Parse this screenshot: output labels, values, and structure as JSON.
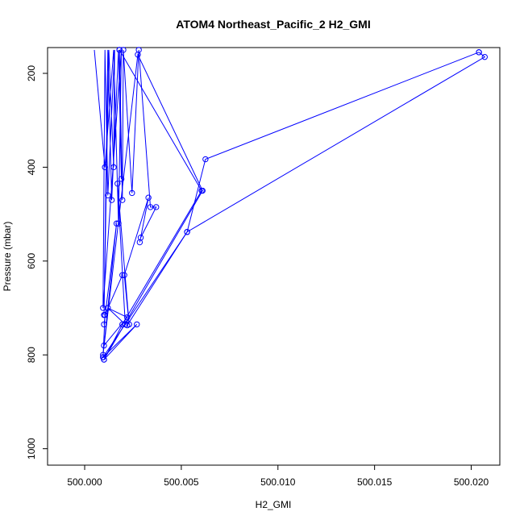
{
  "chart_data": {
    "type": "line",
    "title": "ATOM4 Northeast_Pacific_2 H2_GMI",
    "xlabel": "H2_GMI",
    "ylabel": "Pressure (mbar)",
    "xlim": [
      499.99808,
      500.02148
    ],
    "ylim": [
      1035,
      145
    ],
    "y_reversed": true,
    "x_ticks": [
      500.0,
      500.005,
      500.01,
      500.015,
      500.02
    ],
    "x_tick_labels": [
      "500.000",
      "500.005",
      "500.010",
      "500.015",
      "500.020"
    ],
    "y_ticks": [
      200,
      400,
      600,
      800,
      1000
    ],
    "y_tick_labels": [
      "200",
      "400",
      "600",
      "800",
      "1000"
    ],
    "grid": false,
    "legend": "none",
    "series_color": "#0000ff",
    "series": [
      {
        "x": [
          500.0005,
          500.00105,
          500.0015,
          500.00175,
          500.0019,
          500.00095,
          500.00105,
          500.0012,
          500.00155,
          500.0015,
          500.00125,
          500.001,
          500.0012,
          500.0014,
          500.00175,
          500.0019
        ],
        "y": [
          150,
          400,
          150,
          520,
          150,
          700,
          150,
          460,
          150,
          400,
          150,
          715,
          150,
          470,
          150,
          425
        ],
        "show_points": [
          false,
          true,
          false,
          true,
          false,
          true,
          false,
          true,
          false,
          true,
          false,
          true,
          false,
          true,
          false,
          true
        ]
      },
      {
        "x": [
          500.0018,
          500.00195,
          500.002,
          500.00245,
          500.0028,
          500.0034,
          500.0037,
          500.0029,
          500.00285,
          500.0033,
          500.00205,
          500.0023,
          500.0017,
          500.0021,
          500.0012,
          500.0022,
          500.001,
          500.00165,
          500.001
        ],
        "y": [
          150,
          470,
          150,
          455,
          150,
          485,
          485,
          550,
          560,
          465,
          630,
          735,
          435,
          735,
          700,
          720,
          780,
          520,
          735
        ]
      },
      {
        "x": [
          500.0018,
          500.00605,
          500.00195,
          500.001,
          500.0061,
          500.00275,
          500.00095,
          500.00095,
          500.00105,
          500.00195
        ],
        "y": [
          150,
          450,
          735,
          810,
          450,
          160,
          800,
          805,
          715,
          630
        ]
      },
      {
        "x": [
          500.0204,
          500.00625,
          500.0053,
          500.00095,
          500.0027,
          500.001
        ],
        "y": [
          155,
          383,
          538,
          805,
          735,
          810
        ]
      },
      {
        "x": [
          500.0204,
          500.0207,
          500.0053,
          500.0022
        ],
        "y": [
          155,
          165,
          538,
          737
        ]
      }
    ]
  }
}
